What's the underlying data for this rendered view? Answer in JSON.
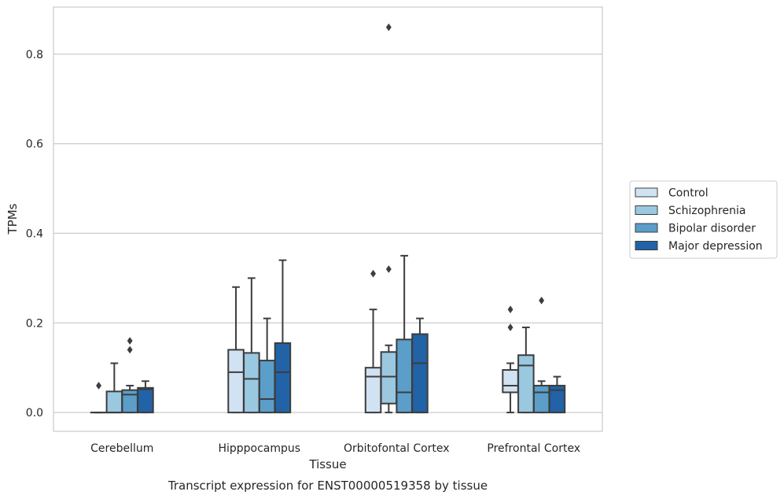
{
  "caption": "Transcript expression for ENST00000519358 by tissue",
  "chart_data": {
    "type": "box",
    "title": "",
    "xlabel": "Tissue",
    "ylabel": "TPMs",
    "ylim": [
      -0.042,
      0.905
    ],
    "yticks": [
      0.0,
      0.2,
      0.4,
      0.6,
      0.8
    ],
    "ytick_labels": [
      "0.0",
      "0.2",
      "0.4",
      "0.6",
      "0.8"
    ],
    "grid": true,
    "legend_position": "center-right outside",
    "categories": [
      "Cerebellum",
      "Hipppocampus",
      "Orbitofontal Cortex",
      "Prefrontal Cortex"
    ],
    "series": [
      {
        "name": "Control",
        "color": "#d1e2f2",
        "boxes": [
          {
            "whislo": 0.0,
            "q1": 0.0,
            "med": 0.0,
            "q3": 0.0,
            "whishi": 0.0,
            "fliers": [
              0.06
            ]
          },
          {
            "whislo": 0.0,
            "q1": 0.0,
            "med": 0.09,
            "q3": 0.14,
            "whishi": 0.28,
            "fliers": []
          },
          {
            "whislo": 0.0,
            "q1": 0.0,
            "med": 0.08,
            "q3": 0.1,
            "whishi": 0.23,
            "fliers": [
              0.31
            ]
          },
          {
            "whislo": 0.0,
            "q1": 0.045,
            "med": 0.06,
            "q3": 0.095,
            "whishi": 0.11,
            "fliers": [
              0.19,
              0.23
            ]
          }
        ]
      },
      {
        "name": "Schizophrenia",
        "color": "#9ac8e0",
        "boxes": [
          {
            "whislo": 0.0,
            "q1": 0.0,
            "med": 0.0,
            "q3": 0.047,
            "whishi": 0.11,
            "fliers": []
          },
          {
            "whislo": 0.0,
            "q1": 0.0,
            "med": 0.075,
            "q3": 0.133,
            "whishi": 0.3,
            "fliers": []
          },
          {
            "whislo": 0.0,
            "q1": 0.02,
            "med": 0.08,
            "q3": 0.135,
            "whishi": 0.15,
            "fliers": [
              0.32,
              0.86
            ]
          },
          {
            "whislo": 0.0,
            "q1": 0.0,
            "med": 0.105,
            "q3": 0.128,
            "whishi": 0.19,
            "fliers": []
          }
        ]
      },
      {
        "name": "Bipolar disorder",
        "color": "#5a9ec9",
        "boxes": [
          {
            "whislo": 0.0,
            "q1": 0.0,
            "med": 0.04,
            "q3": 0.05,
            "whishi": 0.06,
            "fliers": [
              0.14,
              0.16
            ]
          },
          {
            "whislo": 0.0,
            "q1": 0.0,
            "med": 0.03,
            "q3": 0.116,
            "whishi": 0.21,
            "fliers": []
          },
          {
            "whislo": 0.0,
            "q1": 0.0,
            "med": 0.045,
            "q3": 0.163,
            "whishi": 0.35,
            "fliers": []
          },
          {
            "whislo": 0.0,
            "q1": 0.0,
            "med": 0.045,
            "q3": 0.06,
            "whishi": 0.07,
            "fliers": [
              0.25
            ]
          }
        ]
      },
      {
        "name": "Major depression",
        "color": "#2262a6",
        "boxes": [
          {
            "whislo": 0.0,
            "q1": 0.0,
            "med": 0.052,
            "q3": 0.055,
            "whishi": 0.07,
            "fliers": []
          },
          {
            "whislo": 0.0,
            "q1": 0.0,
            "med": 0.09,
            "q3": 0.155,
            "whishi": 0.34,
            "fliers": []
          },
          {
            "whislo": 0.0,
            "q1": 0.0,
            "med": 0.11,
            "q3": 0.175,
            "whishi": 0.21,
            "fliers": []
          },
          {
            "whislo": 0.0,
            "q1": 0.0,
            "med": 0.05,
            "q3": 0.06,
            "whishi": 0.08,
            "fliers": []
          }
        ]
      }
    ]
  }
}
